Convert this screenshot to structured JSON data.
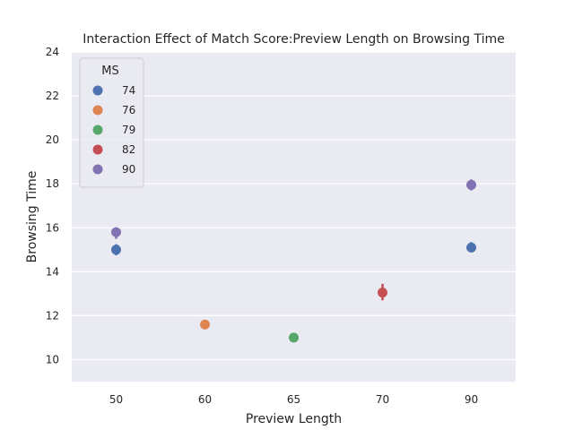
{
  "chart_data": {
    "type": "scatter",
    "title": "Interaction Effect of Match Score:Preview Length on Browsing Time",
    "xlabel": "Preview Length",
    "ylabel": "Browsing Time",
    "categories": [
      "50",
      "60",
      "65",
      "70",
      "90"
    ],
    "ylim": [
      9,
      24
    ],
    "yticks": [
      10,
      12,
      14,
      16,
      18,
      20,
      22,
      24
    ],
    "grid": true,
    "legend": {
      "title": "MS",
      "placement": "top-left"
    },
    "series": [
      {
        "name": "74",
        "color": "#4c72b0",
        "points": [
          {
            "x": "50",
            "y": 15.0,
            "lo": 14.75,
            "hi": 15.25
          },
          {
            "x": "90",
            "y": 15.1,
            "lo": 14.9,
            "hi": 15.35
          }
        ]
      },
      {
        "name": "76",
        "color": "#dd8452",
        "points": [
          {
            "x": "60",
            "y": 11.6,
            "lo": 11.45,
            "hi": 11.75
          }
        ]
      },
      {
        "name": "79",
        "color": "#55a868",
        "points": [
          {
            "x": "65",
            "y": 11.0,
            "lo": 10.85,
            "hi": 11.15
          }
        ]
      },
      {
        "name": "82",
        "color": "#c44e52",
        "points": [
          {
            "x": "70",
            "y": 13.05,
            "lo": 12.7,
            "hi": 13.45
          }
        ]
      },
      {
        "name": "90",
        "color": "#8172b3",
        "points": [
          {
            "x": "50",
            "y": 15.8,
            "lo": 15.5,
            "hi": 16.0
          },
          {
            "x": "90",
            "y": 17.95,
            "lo": 17.7,
            "hi": 18.2
          }
        ]
      }
    ]
  }
}
